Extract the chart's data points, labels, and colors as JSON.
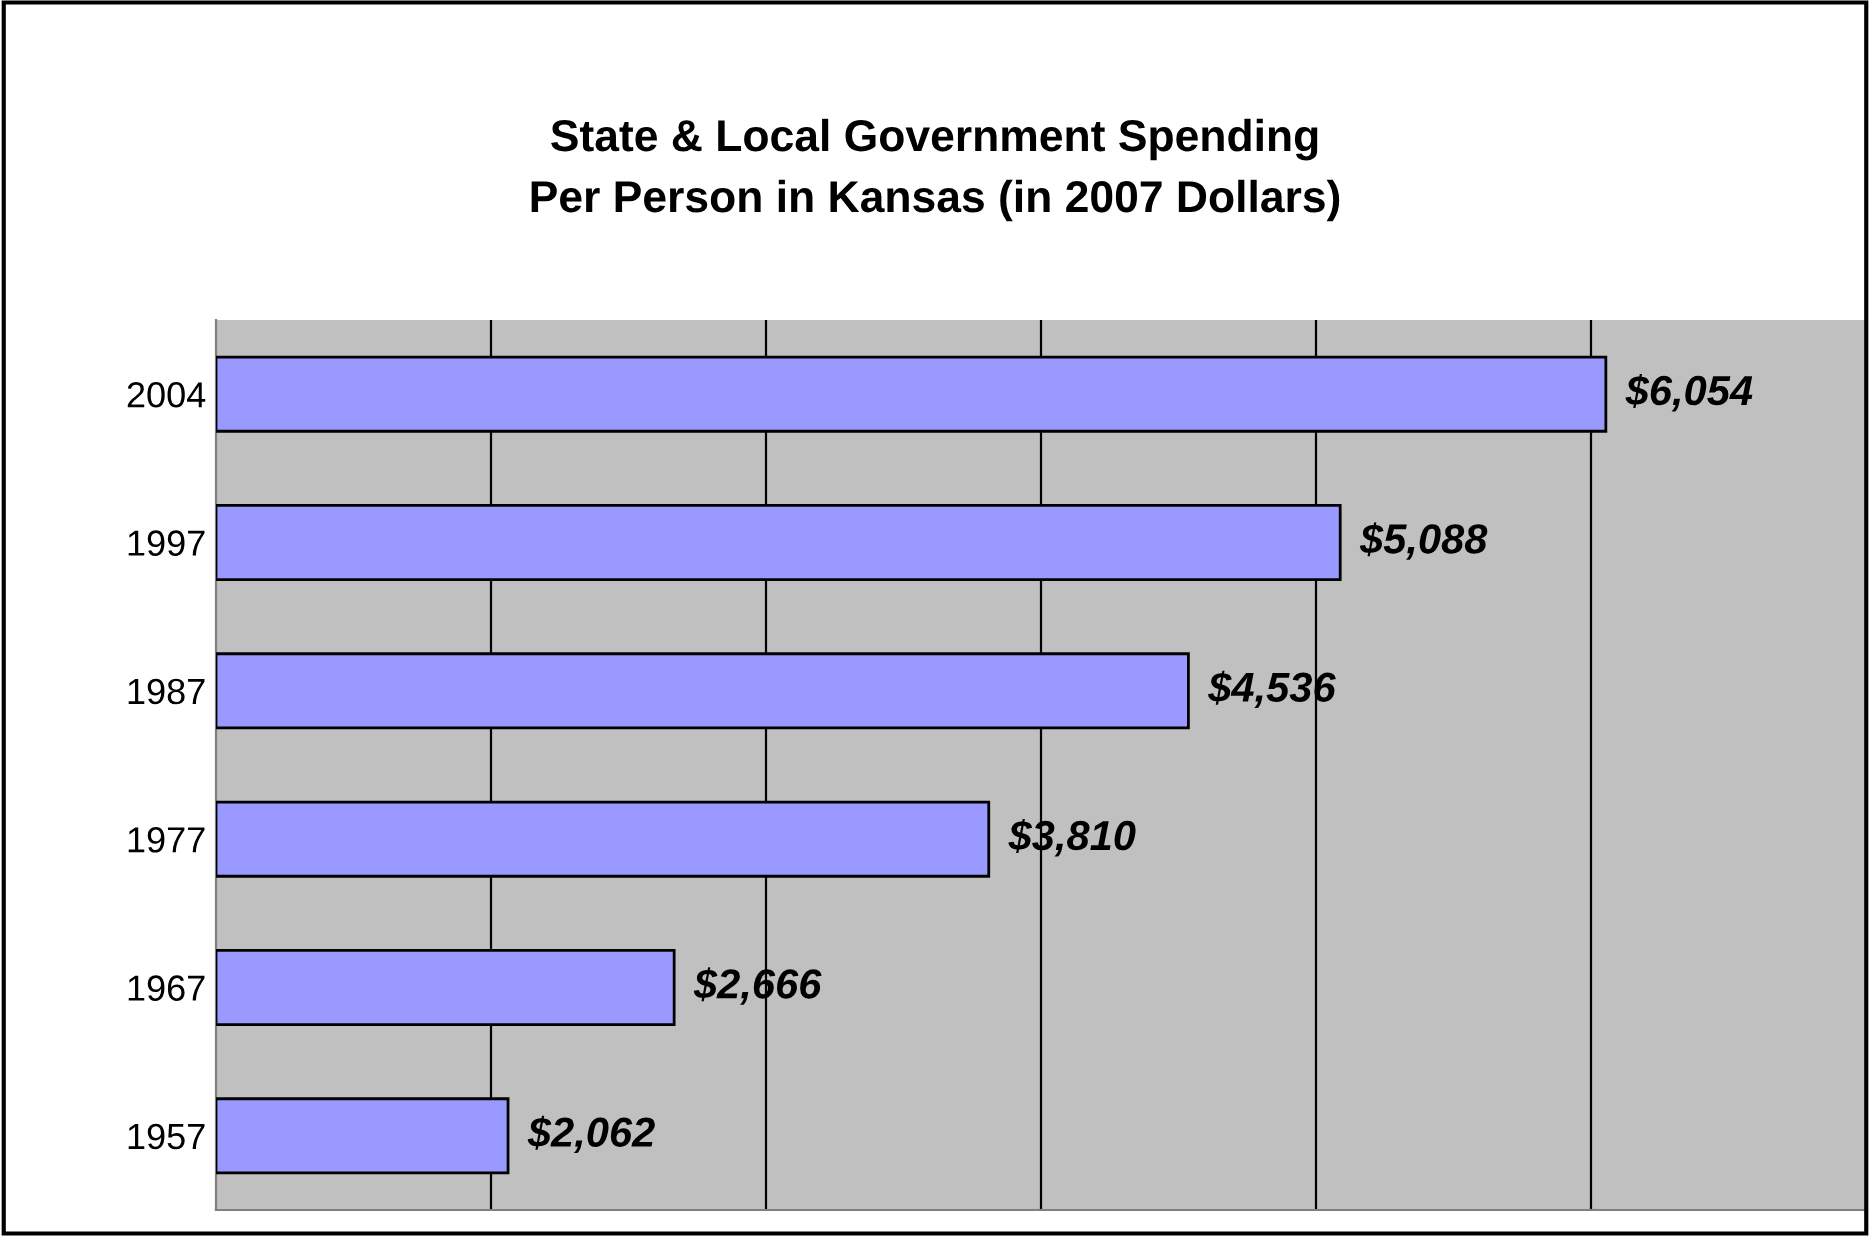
{
  "chart_data": {
    "type": "bar",
    "orientation": "horizontal",
    "title": "State & Local Government Spending\nPer Person in Kansas (in 2007 Dollars)",
    "categories": [
      "2004",
      "1997",
      "1987",
      "1977",
      "1967",
      "1957"
    ],
    "values": [
      6054,
      5088,
      4536,
      3810,
      2666,
      2062
    ],
    "value_labels": [
      "$6,054",
      "$5,088",
      "$4,536",
      "$3,810",
      "$2,666",
      "$2,062"
    ],
    "color": "#9999ff",
    "xlim": [
      1000,
      7000
    ],
    "xticks": [
      {
        "value": 2000,
        "label": null
      },
      {
        "value": 3000,
        "label": null
      },
      {
        "value": 4000,
        "label": null
      },
      {
        "value": 5000,
        "label": null
      },
      {
        "value": 6000,
        "label": null
      }
    ],
    "tick_labels": "y",
    "grid": "x",
    "legend": false
  }
}
